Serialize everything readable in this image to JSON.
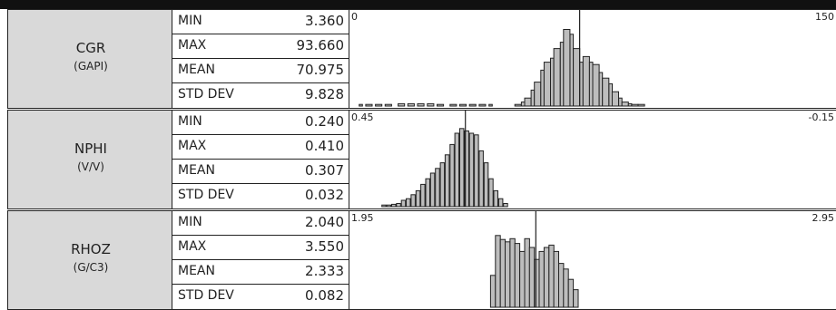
{
  "chart_data": {
    "type": "histogram-table",
    "rows": [
      {
        "name": "CGR",
        "unit": "(GAPI)",
        "stats": [
          {
            "label": "MIN",
            "value": "3.360"
          },
          {
            "label": "MAX",
            "value": "93.660"
          },
          {
            "label": "MEAN",
            "value": "70.975"
          },
          {
            "label": "STD DEV",
            "value": "9.828"
          }
        ],
        "scale_min_label": "0",
        "scale_max_label": "150",
        "x_start": 0,
        "x_end": 150,
        "mean": 70.975,
        "bins": [
          [
            3,
            4,
            0.02
          ],
          [
            5,
            7,
            0.02
          ],
          [
            8,
            10,
            0.02
          ],
          [
            11,
            13,
            0.02
          ],
          [
            15,
            17,
            0.03
          ],
          [
            18,
            20,
            0.03
          ],
          [
            21,
            23,
            0.03
          ],
          [
            24,
            26,
            0.03
          ],
          [
            27,
            29,
            0.02
          ],
          [
            31,
            33,
            0.02
          ],
          [
            34,
            36,
            0.02
          ],
          [
            37,
            39,
            0.02
          ],
          [
            40,
            42,
            0.02
          ],
          [
            43,
            44,
            0.02
          ],
          [
            51,
            53,
            0.02
          ],
          [
            53,
            54,
            0.05
          ],
          [
            54,
            56,
            0.1
          ],
          [
            56,
            57,
            0.2
          ],
          [
            57,
            59,
            0.3
          ],
          [
            59,
            60,
            0.45
          ],
          [
            60,
            62,
            0.55
          ],
          [
            62,
            63,
            0.6
          ],
          [
            63,
            65,
            0.72
          ],
          [
            65,
            66,
            0.8
          ],
          [
            66,
            68,
            0.96
          ],
          [
            68,
            69,
            0.9
          ],
          [
            69,
            71,
            0.72
          ],
          [
            71,
            72,
            0.55
          ],
          [
            72,
            74,
            0.62
          ],
          [
            74,
            75,
            0.55
          ],
          [
            75,
            77,
            0.52
          ],
          [
            77,
            78,
            0.42
          ],
          [
            78,
            80,
            0.35
          ],
          [
            80,
            81,
            0.28
          ],
          [
            81,
            83,
            0.18
          ],
          [
            83,
            84,
            0.1
          ],
          [
            84,
            86,
            0.05
          ],
          [
            86,
            87,
            0.03
          ],
          [
            87,
            89,
            0.02
          ],
          [
            89,
            91,
            0.02
          ]
        ]
      },
      {
        "name": "NPHI",
        "unit": "(V/V)",
        "stats": [
          {
            "label": "MIN",
            "value": "0.240"
          },
          {
            "label": "MAX",
            "value": "0.410"
          },
          {
            "label": "MEAN",
            "value": "0.307"
          },
          {
            "label": "STD DEV",
            "value": "0.032"
          }
        ],
        "scale_min_label": "0.45",
        "scale_max_label": "-0.15",
        "x_start": 0.45,
        "x_end": -0.15,
        "mean": 0.307,
        "bins": [
          [
            0.41,
            0.405,
            0.02
          ],
          [
            0.404,
            0.399,
            0.02
          ],
          [
            0.398,
            0.393,
            0.03
          ],
          [
            0.392,
            0.387,
            0.04
          ],
          [
            0.386,
            0.381,
            0.08
          ],
          [
            0.38,
            0.375,
            0.1
          ],
          [
            0.374,
            0.369,
            0.15
          ],
          [
            0.368,
            0.363,
            0.2
          ],
          [
            0.362,
            0.357,
            0.28
          ],
          [
            0.356,
            0.351,
            0.35
          ],
          [
            0.35,
            0.345,
            0.42
          ],
          [
            0.344,
            0.339,
            0.48
          ],
          [
            0.338,
            0.333,
            0.55
          ],
          [
            0.332,
            0.327,
            0.65
          ],
          [
            0.326,
            0.321,
            0.78
          ],
          [
            0.32,
            0.315,
            0.92
          ],
          [
            0.314,
            0.309,
            0.98
          ],
          [
            0.308,
            0.303,
            0.95
          ],
          [
            0.302,
            0.297,
            0.92
          ],
          [
            0.296,
            0.291,
            0.9
          ],
          [
            0.29,
            0.285,
            0.7
          ],
          [
            0.284,
            0.279,
            0.55
          ],
          [
            0.278,
            0.273,
            0.35
          ],
          [
            0.272,
            0.267,
            0.2
          ],
          [
            0.266,
            0.261,
            0.1
          ],
          [
            0.26,
            0.255,
            0.04
          ]
        ]
      },
      {
        "name": "RHOZ",
        "unit": "(G/C3)",
        "stats": [
          {
            "label": "MIN",
            "value": "2.040"
          },
          {
            "label": "MAX",
            "value": "3.550"
          },
          {
            "label": "MEAN",
            "value": "2.333"
          },
          {
            "label": "STD DEV",
            "value": "0.082"
          }
        ],
        "scale_min_label": "1.95",
        "scale_max_label": "2.95",
        "x_start": 1.95,
        "x_end": 2.95,
        "mean": 2.333,
        "bins": [
          [
            2.24,
            2.25,
            0.4
          ],
          [
            2.25,
            2.26,
            0.9
          ],
          [
            2.26,
            2.27,
            0.85
          ],
          [
            2.27,
            2.28,
            0.82
          ],
          [
            2.28,
            2.29,
            0.86
          ],
          [
            2.29,
            2.3,
            0.8
          ],
          [
            2.3,
            2.31,
            0.7
          ],
          [
            2.31,
            2.32,
            0.86
          ],
          [
            2.32,
            2.33,
            0.75
          ],
          [
            2.33,
            2.34,
            0.6
          ],
          [
            2.34,
            2.35,
            0.7
          ],
          [
            2.35,
            2.36,
            0.75
          ],
          [
            2.36,
            2.37,
            0.78
          ],
          [
            2.37,
            2.38,
            0.7
          ],
          [
            2.38,
            2.39,
            0.55
          ],
          [
            2.39,
            2.4,
            0.48
          ],
          [
            2.4,
            2.41,
            0.35
          ],
          [
            2.41,
            2.42,
            0.22
          ]
        ]
      }
    ]
  }
}
